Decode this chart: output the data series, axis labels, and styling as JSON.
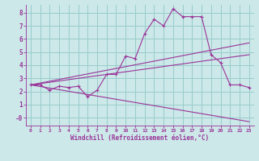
{
  "xlabel": "Windchill (Refroidissement éolien,°C)",
  "bg_color": "#cce8e8",
  "line_color": "#993399",
  "grid_color": "#99cccc",
  "xlim": [
    -0.5,
    23.5
  ],
  "ylim": [
    -0.6,
    8.6
  ],
  "xticks": [
    0,
    1,
    2,
    3,
    4,
    5,
    6,
    7,
    8,
    9,
    10,
    11,
    12,
    13,
    14,
    15,
    16,
    17,
    18,
    19,
    20,
    21,
    22,
    23
  ],
  "yticks": [
    0,
    1,
    2,
    3,
    4,
    5,
    6,
    7,
    8
  ],
  "ytick_labels": [
    "-0",
    "1",
    "2",
    "3",
    "4",
    "5",
    "6",
    "7",
    "8"
  ],
  "line1_x": [
    0,
    1,
    2,
    3,
    4,
    5,
    6,
    7,
    8,
    9,
    10,
    11,
    12,
    13,
    14,
    15,
    16,
    17,
    18,
    19,
    20,
    21,
    22,
    23
  ],
  "line1_y": [
    2.5,
    2.5,
    2.1,
    2.4,
    2.3,
    2.4,
    1.6,
    2.1,
    3.3,
    3.3,
    4.7,
    4.5,
    6.4,
    7.5,
    7.0,
    8.3,
    7.7,
    7.7,
    7.7,
    4.8,
    4.2,
    2.5,
    2.5,
    2.3
  ],
  "line2_x": [
    0,
    23
  ],
  "line2_y": [
    2.5,
    5.7
  ],
  "line3_x": [
    0,
    23
  ],
  "line3_y": [
    2.5,
    4.8
  ],
  "line4_x": [
    0,
    23
  ],
  "line4_y": [
    2.5,
    -0.3
  ]
}
